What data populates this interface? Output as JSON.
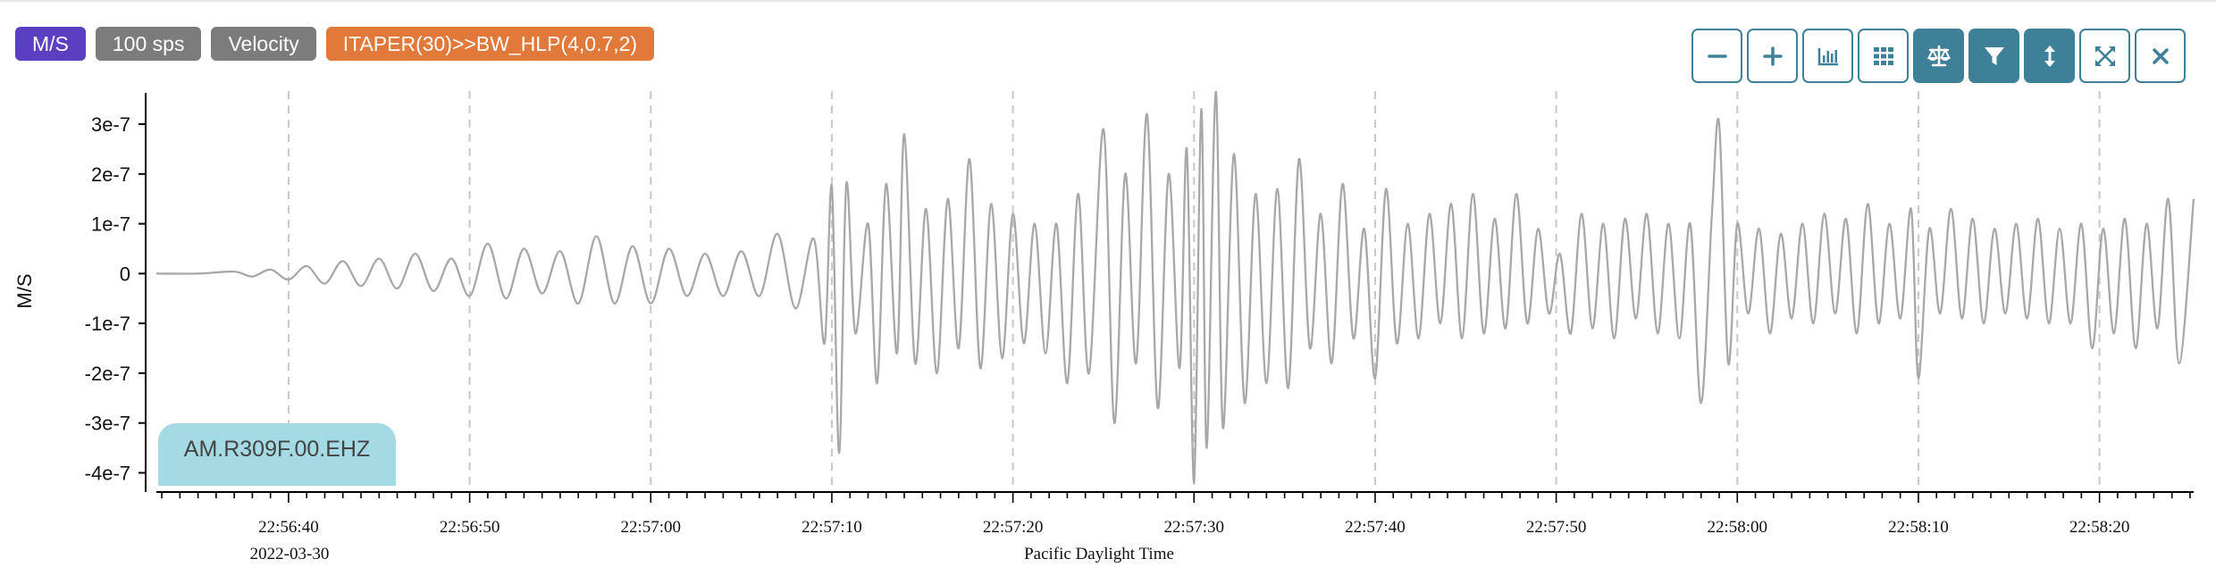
{
  "badges": {
    "units": "M/S",
    "rate": "100 sps",
    "type": "Velocity",
    "filter": "ITAPER(30)>>BW_HLP(4,0.7,2)"
  },
  "colors": {
    "units_badge": "#5a3fc0",
    "gray_badge": "#7c7c7c",
    "filter_badge": "#e0793a",
    "toolbar_accent": "#3d8097",
    "trace": "#a8a8a8",
    "station_label_bg": "#a4dae4"
  },
  "toolbar": [
    {
      "name": "zoom-out-button",
      "icon": "minus-icon",
      "active": false
    },
    {
      "name": "zoom-in-button",
      "icon": "plus-icon",
      "active": false
    },
    {
      "name": "amplitude-button",
      "icon": "bar-chart-icon",
      "active": false
    },
    {
      "name": "grid-button",
      "icon": "grid-icon",
      "active": false
    },
    {
      "name": "balance-button",
      "icon": "scale-icon",
      "active": true
    },
    {
      "name": "filter-button",
      "icon": "funnel-icon",
      "active": true
    },
    {
      "name": "vertical-scale-button",
      "icon": "vertical-arrows-icon",
      "active": true
    },
    {
      "name": "expand-button",
      "icon": "expand-icon",
      "active": false
    },
    {
      "name": "close-button",
      "icon": "close-icon",
      "active": false
    }
  ],
  "station": "AM.R309F.00.EHZ",
  "chart_data": {
    "type": "line",
    "ylabel": "M/S",
    "xlabel": "Pacific Daylight Time",
    "date_label": "2022-03-30",
    "y_ticks": [
      {
        "value": 3e-07,
        "label": "3e-7"
      },
      {
        "value": 2e-07,
        "label": "2e-7"
      },
      {
        "value": 1e-07,
        "label": "1e-7"
      },
      {
        "value": 0,
        "label": "0"
      },
      {
        "value": -1e-07,
        "label": "-1e-7"
      },
      {
        "value": -2e-07,
        "label": "-2e-7"
      },
      {
        "value": -3e-07,
        "label": "-3e-7"
      },
      {
        "value": -4e-07,
        "label": "-4e-7"
      }
    ],
    "ylim": [
      -4.35e-07,
      3.7e-07
    ],
    "x_range": [
      "22:56:32.7",
      "22:58:25.2"
    ],
    "x_ticks": [
      {
        "t": "22:56:40",
        "label": "22:56:40"
      },
      {
        "t": "22:56:50",
        "label": "22:56:50"
      },
      {
        "t": "22:57:00",
        "label": "22:57:00"
      },
      {
        "t": "22:57:10",
        "label": "22:57:10"
      },
      {
        "t": "22:57:20",
        "label": "22:57:20"
      },
      {
        "t": "22:57:30",
        "label": "22:57:30"
      },
      {
        "t": "22:57:40",
        "label": "22:57:40"
      },
      {
        "t": "22:57:50",
        "label": "22:57:50"
      },
      {
        "t": "22:58:00",
        "label": "22:58:00"
      },
      {
        "t": "22:58:10",
        "label": "22:58:10"
      },
      {
        "t": "22:58:20",
        "label": "22:58:20"
      }
    ],
    "grid": "vertical dashed at major ticks",
    "series": [
      {
        "points": [
          [
            "22:56:32.7",
            0
          ],
          [
            "22:56:35.0",
            0.0
          ],
          [
            "22:56:37.0",
            4e-09
          ],
          [
            "22:56:38.0",
            -6e-09
          ],
          [
            "22:56:39.0",
            8e-09
          ],
          [
            "22:56:40.0",
            -1.2e-08
          ],
          [
            "22:56:41.0",
            1.5e-08
          ],
          [
            "22:56:42.0",
            -2e-08
          ],
          [
            "22:56:43.0",
            2.5e-08
          ],
          [
            "22:56:44.0",
            -2.5e-08
          ],
          [
            "22:56:45.0",
            3e-08
          ],
          [
            "22:56:46.0",
            -3e-08
          ],
          [
            "22:56:47.0",
            4e-08
          ],
          [
            "22:56:48.0",
            -3.5e-08
          ],
          [
            "22:56:49.0",
            3e-08
          ],
          [
            "22:56:50.0",
            -4.5e-08
          ],
          [
            "22:56:51.0",
            6e-08
          ],
          [
            "22:56:52.0",
            -5e-08
          ],
          [
            "22:56:53.0",
            5e-08
          ],
          [
            "22:56:54.0",
            -4e-08
          ],
          [
            "22:56:55.0",
            4.5e-08
          ],
          [
            "22:56:56.0",
            -6e-08
          ],
          [
            "22:56:57.0",
            7.5e-08
          ],
          [
            "22:56:58.0",
            -6e-08
          ],
          [
            "22:56:59.0",
            5.5e-08
          ],
          [
            "22:57:00.0",
            -6e-08
          ],
          [
            "22:57:01.0",
            5e-08
          ],
          [
            "22:57:02.0",
            -4.5e-08
          ],
          [
            "22:57:03.0",
            4e-08
          ],
          [
            "22:57:04.0",
            -4.5e-08
          ],
          [
            "22:57:05.0",
            4.5e-08
          ],
          [
            "22:57:06.0",
            -4.5e-08
          ],
          [
            "22:57:07.0",
            8e-08
          ],
          [
            "22:57:08.0",
            -7e-08
          ],
          [
            "22:57:09.0",
            7e-08
          ],
          [
            "22:57:09.6",
            -1.4e-07
          ],
          [
            "22:57:10.0",
            1.75e-07
          ],
          [
            "22:57:10.4",
            -3.6e-07
          ],
          [
            "22:57:10.8",
            1.8e-07
          ],
          [
            "22:57:11.3",
            -1.2e-07
          ],
          [
            "22:57:12.0",
            1e-07
          ],
          [
            "22:57:12.5",
            -2.2e-07
          ],
          [
            "22:57:13.0",
            1.8e-07
          ],
          [
            "22:57:13.6",
            -1.6e-07
          ],
          [
            "22:57:14.0",
            2.8e-07
          ],
          [
            "22:57:14.6",
            -1.8e-07
          ],
          [
            "22:57:15.2",
            1.3e-07
          ],
          [
            "22:57:15.8",
            -2e-07
          ],
          [
            "22:57:16.4",
            1.5e-07
          ],
          [
            "22:57:17.0",
            -1.5e-07
          ],
          [
            "22:57:17.6",
            2.3e-07
          ],
          [
            "22:57:18.2",
            -1.9e-07
          ],
          [
            "22:57:18.8",
            1.4e-07
          ],
          [
            "22:57:19.4",
            -1.7e-07
          ],
          [
            "22:57:20.0",
            1.2e-07
          ],
          [
            "22:57:20.6",
            -1.4e-07
          ],
          [
            "22:57:21.2",
            1e-07
          ],
          [
            "22:57:21.8",
            -1.6e-07
          ],
          [
            "22:57:22.4",
            1e-07
          ],
          [
            "22:57:23.0",
            -2.2e-07
          ],
          [
            "22:57:23.6",
            1.6e-07
          ],
          [
            "22:57:24.2",
            -2e-07
          ],
          [
            "22:57:25.0",
            2.9e-07
          ],
          [
            "22:57:25.6",
            -3e-07
          ],
          [
            "22:57:26.2",
            2e-07
          ],
          [
            "22:57:26.8",
            -1.8e-07
          ],
          [
            "22:57:27.4",
            3.2e-07
          ],
          [
            "22:57:28.0",
            -2.7e-07
          ],
          [
            "22:57:28.6",
            2e-07
          ],
          [
            "22:57:29.2",
            -1.9e-07
          ],
          [
            "22:57:29.6",
            2.5e-07
          ],
          [
            "22:57:30.0",
            -4.2e-07
          ],
          [
            "22:57:30.4",
            3.3e-07
          ],
          [
            "22:57:30.7",
            -3.5e-07
          ],
          [
            "22:57:31.2",
            3.65e-07
          ],
          [
            "22:57:31.6",
            -3.1e-07
          ],
          [
            "22:57:32.2",
            2.4e-07
          ],
          [
            "22:57:32.8",
            -2.6e-07
          ],
          [
            "22:57:33.4",
            1.6e-07
          ],
          [
            "22:57:34.0",
            -2.2e-07
          ],
          [
            "22:57:34.6",
            1.7e-07
          ],
          [
            "22:57:35.2",
            -2.3e-07
          ],
          [
            "22:57:35.8",
            2.3e-07
          ],
          [
            "22:57:36.4",
            -1.5e-07
          ],
          [
            "22:57:37.0",
            1.2e-07
          ],
          [
            "22:57:37.6",
            -1.8e-07
          ],
          [
            "22:57:38.2",
            1.8e-07
          ],
          [
            "22:57:38.8",
            -1.3e-07
          ],
          [
            "22:57:39.4",
            9e-08
          ],
          [
            "22:57:40.0",
            -2.1e-07
          ],
          [
            "22:57:40.6",
            1.7e-07
          ],
          [
            "22:57:41.2",
            -1.4e-07
          ],
          [
            "22:57:41.8",
            1e-07
          ],
          [
            "22:57:42.4",
            -1.3e-07
          ],
          [
            "22:57:43.0",
            1.2e-07
          ],
          [
            "22:57:43.6",
            -1e-07
          ],
          [
            "22:57:44.2",
            1.4e-07
          ],
          [
            "22:57:44.8",
            -1.3e-07
          ],
          [
            "22:57:45.4",
            1.6e-07
          ],
          [
            "22:57:46.0",
            -1.2e-07
          ],
          [
            "22:57:46.6",
            1.1e-07
          ],
          [
            "22:57:47.2",
            -1.1e-07
          ],
          [
            "22:57:47.8",
            1.6e-07
          ],
          [
            "22:57:48.4",
            -1e-07
          ],
          [
            "22:57:49.0",
            9e-08
          ],
          [
            "22:57:49.6",
            -8e-08
          ],
          [
            "22:57:50.2",
            4e-08
          ],
          [
            "22:57:50.8",
            -1.2e-07
          ],
          [
            "22:57:51.4",
            1.2e-07
          ],
          [
            "22:57:52.0",
            -1.1e-07
          ],
          [
            "22:57:52.6",
            1e-07
          ],
          [
            "22:57:53.2",
            -1.3e-07
          ],
          [
            "22:57:53.8",
            1.1e-07
          ],
          [
            "22:57:54.4",
            -9e-08
          ],
          [
            "22:57:55.0",
            1.2e-07
          ],
          [
            "22:57:55.6",
            -1.2e-07
          ],
          [
            "22:57:56.2",
            1e-07
          ],
          [
            "22:57:56.8",
            -1.3e-07
          ],
          [
            "22:57:57.4",
            1e-07
          ],
          [
            "22:57:58.0",
            -2.6e-07
          ],
          [
            "22:57:58.6",
            1.2e-07
          ],
          [
            "22:57:59.0",
            3e-07
          ],
          [
            "22:57:59.5",
            -1.8e-07
          ],
          [
            "22:58:00.0",
            1e-07
          ],
          [
            "22:58:00.6",
            -8e-08
          ],
          [
            "22:58:01.2",
            9e-08
          ],
          [
            "22:58:01.8",
            -1.2e-07
          ],
          [
            "22:58:02.4",
            8e-08
          ],
          [
            "22:58:03.0",
            -9e-08
          ],
          [
            "22:58:03.6",
            1e-07
          ],
          [
            "22:58:04.2",
            -1e-07
          ],
          [
            "22:58:04.8",
            1.2e-07
          ],
          [
            "22:58:05.4",
            -8e-08
          ],
          [
            "22:58:06.0",
            1.1e-07
          ],
          [
            "22:58:06.6",
            -1.2e-07
          ],
          [
            "22:58:07.2",
            1.4e-07
          ],
          [
            "22:58:07.8",
            -1e-07
          ],
          [
            "22:58:08.4",
            1e-07
          ],
          [
            "22:58:09.0",
            -9e-08
          ],
          [
            "22:58:09.6",
            1.3e-07
          ],
          [
            "22:58:10.0",
            -2.1e-07
          ],
          [
            "22:58:10.6",
            9e-08
          ],
          [
            "22:58:11.2",
            -8e-08
          ],
          [
            "22:58:11.8",
            1.3e-07
          ],
          [
            "22:58:12.4",
            -9e-08
          ],
          [
            "22:58:13.0",
            1.1e-07
          ],
          [
            "22:58:13.6",
            -1e-07
          ],
          [
            "22:58:14.2",
            9e-08
          ],
          [
            "22:58:14.8",
            -8e-08
          ],
          [
            "22:58:15.4",
            1e-07
          ],
          [
            "22:58:16.0",
            -9e-08
          ],
          [
            "22:58:16.6",
            1.1e-07
          ],
          [
            "22:58:17.2",
            -1e-07
          ],
          [
            "22:58:17.8",
            9e-08
          ],
          [
            "22:58:18.4",
            -1e-07
          ],
          [
            "22:58:19.0",
            1e-07
          ],
          [
            "22:58:19.6",
            -1.5e-07
          ],
          [
            "22:58:20.2",
            9e-08
          ],
          [
            "22:58:20.8",
            -1.2e-07
          ],
          [
            "22:58:21.4",
            1.1e-07
          ],
          [
            "22:58:22.0",
            -1.5e-07
          ],
          [
            "22:58:22.6",
            1e-07
          ],
          [
            "22:58:23.2",
            -1.1e-07
          ],
          [
            "22:58:23.8",
            1.5e-07
          ],
          [
            "22:58:24.4",
            -1.8e-07
          ],
          [
            "22:58:25.2",
            1.5e-07
          ]
        ]
      }
    ]
  }
}
